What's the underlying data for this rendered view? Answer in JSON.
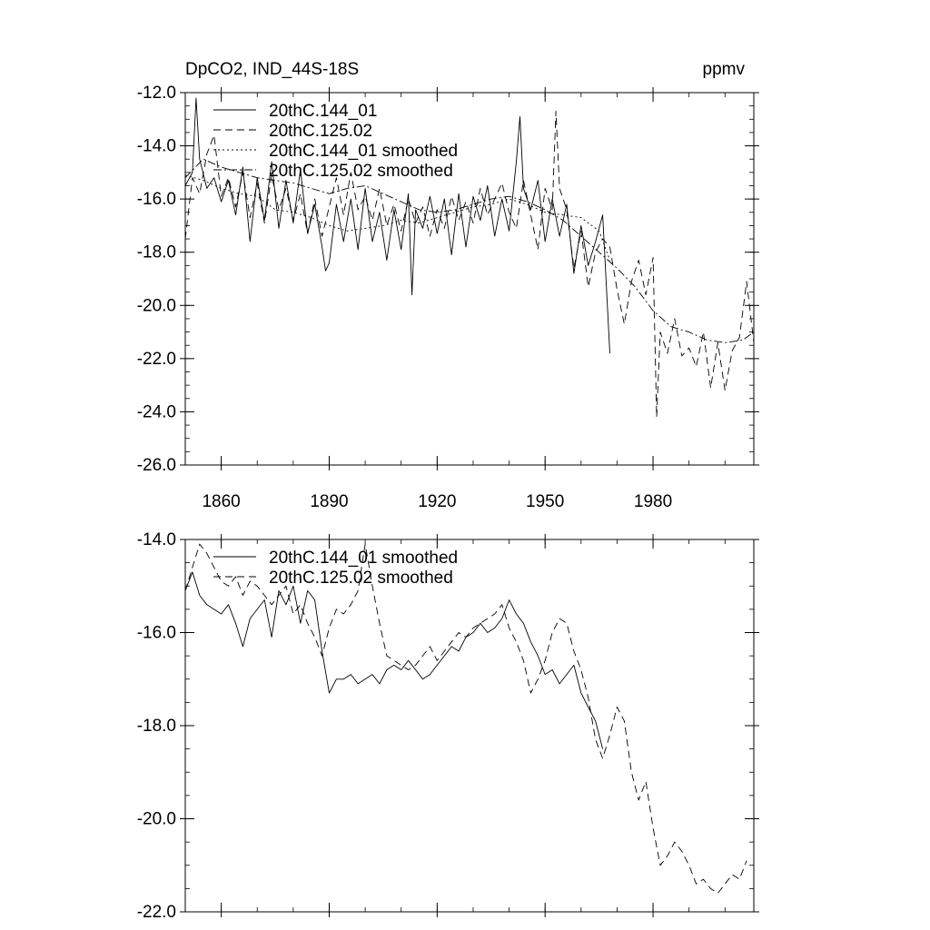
{
  "figure": {
    "title_left": "DpCO2, IND_44S-18S",
    "title_right": "ppmv"
  },
  "chart_data": [
    {
      "type": "line",
      "title": "DpCO2, IND_44S-18S",
      "units": "ppmv",
      "xlim": [
        1850,
        2008
      ],
      "ylim": [
        -26.0,
        -12.0
      ],
      "xticks": [
        1860,
        1890,
        1920,
        1950,
        1980
      ],
      "xtick_labels": [
        "1860",
        "1890",
        "1920",
        "1950",
        "1980"
      ],
      "yticks": [
        -12.0,
        -14.0,
        -16.0,
        -18.0,
        -20.0,
        -22.0,
        -24.0,
        -26.0
      ],
      "ytick_labels": [
        "-12.0",
        "-14.0",
        "-16.0",
        "-18.0",
        "-20.0",
        "-22.0",
        "-24.0",
        "-26.0"
      ],
      "legend_position": "top-left",
      "series": [
        {
          "name": "20thC.144_01",
          "style": "solid",
          "x": [
            1850,
            1852,
            1853,
            1854,
            1856,
            1858,
            1860,
            1862,
            1864,
            1866,
            1868,
            1870,
            1872,
            1874,
            1876,
            1878,
            1880,
            1882,
            1884,
            1886,
            1888,
            1889,
            1890,
            1892,
            1894,
            1896,
            1898,
            1900,
            1902,
            1904,
            1906,
            1908,
            1910,
            1912,
            1913,
            1914,
            1916,
            1918,
            1920,
            1922,
            1924,
            1926,
            1928,
            1930,
            1932,
            1934,
            1936,
            1938,
            1940,
            1942,
            1943,
            1944,
            1946,
            1948,
            1950,
            1952,
            1954,
            1956,
            1958,
            1960,
            1962,
            1964,
            1966,
            1968
          ],
          "values": [
            -15.5,
            -15.0,
            -12.2,
            -14.5,
            -15.6,
            -15.2,
            -16.1,
            -15.3,
            -16.6,
            -14.8,
            -17.6,
            -15.2,
            -16.8,
            -14.6,
            -17.1,
            -15.3,
            -16.9,
            -14.9,
            -17.3,
            -16.2,
            -17.8,
            -18.7,
            -18.4,
            -16.2,
            -17.6,
            -16.0,
            -17.9,
            -15.6,
            -17.6,
            -16.5,
            -18.3,
            -16.4,
            -17.9,
            -15.8,
            -19.6,
            -16.4,
            -17.1,
            -15.9,
            -17.3,
            -16.0,
            -18.1,
            -15.8,
            -17.8,
            -15.9,
            -16.8,
            -15.5,
            -17.4,
            -16.0,
            -17.2,
            -14.6,
            -12.9,
            -15.6,
            -16.4,
            -15.3,
            -17.6,
            -16.0,
            -17.4,
            -16.2,
            -18.8,
            -17.0,
            -18.5,
            -17.6,
            -16.6,
            -21.8
          ]
        },
        {
          "name": "20thC.125.02",
          "style": "dashed",
          "x": [
            1850,
            1852,
            1854,
            1856,
            1858,
            1860,
            1862,
            1864,
            1866,
            1868,
            1870,
            1872,
            1874,
            1876,
            1878,
            1880,
            1882,
            1884,
            1886,
            1888,
            1890,
            1892,
            1894,
            1896,
            1898,
            1900,
            1902,
            1904,
            1906,
            1908,
            1910,
            1912,
            1914,
            1916,
            1918,
            1920,
            1922,
            1924,
            1926,
            1928,
            1930,
            1932,
            1934,
            1936,
            1938,
            1940,
            1942,
            1944,
            1946,
            1948,
            1950,
            1952,
            1953,
            1954,
            1956,
            1958,
            1960,
            1962,
            1964,
            1966,
            1968,
            1970,
            1972,
            1974,
            1976,
            1978,
            1980,
            1981,
            1982,
            1984,
            1986,
            1988,
            1990,
            1992,
            1994,
            1996,
            1998,
            2000,
            2002,
            2004,
            2006,
            2008
          ],
          "values": [
            -17.5,
            -15.2,
            -15.8,
            -14.3,
            -13.6,
            -15.9,
            -15.2,
            -16.3,
            -15.0,
            -16.7,
            -15.4,
            -16.9,
            -15.1,
            -16.4,
            -15.6,
            -16.8,
            -15.8,
            -17.3,
            -16.0,
            -17.4,
            -16.3,
            -15.2,
            -16.6,
            -15.0,
            -16.4,
            -15.9,
            -16.8,
            -15.6,
            -17.0,
            -16.2,
            -17.2,
            -16.0,
            -16.9,
            -16.3,
            -17.4,
            -16.4,
            -17.1,
            -15.9,
            -16.8,
            -16.1,
            -16.9,
            -15.6,
            -16.6,
            -16.0,
            -15.4,
            -16.5,
            -17.1,
            -15.3,
            -16.6,
            -17.9,
            -15.6,
            -16.4,
            -12.7,
            -15.6,
            -16.4,
            -18.6,
            -17.2,
            -19.3,
            -18.0,
            -17.5,
            -17.8,
            -19.4,
            -20.7,
            -19.1,
            -18.3,
            -19.6,
            -18.2,
            -24.2,
            -21.0,
            -21.8,
            -20.5,
            -21.9,
            -21.6,
            -22.3,
            -21.0,
            -23.1,
            -21.4,
            -23.2,
            -21.7,
            -21.2,
            -19.1,
            -21.4
          ]
        },
        {
          "name": "20thC.144_01 smoothed",
          "style": "dotted",
          "x": [
            1850,
            1855,
            1860,
            1865,
            1870,
            1875,
            1880,
            1885,
            1890,
            1895,
            1900,
            1905,
            1910,
            1915,
            1920,
            1925,
            1930,
            1935,
            1940,
            1945,
            1950,
            1955,
            1960,
            1965,
            1968
          ],
          "values": [
            -15.1,
            -15.3,
            -15.6,
            -15.8,
            -15.9,
            -16.4,
            -16.5,
            -16.7,
            -17.0,
            -17.2,
            -17.1,
            -17.0,
            -16.8,
            -16.9,
            -16.7,
            -16.5,
            -16.3,
            -16.2,
            -16.0,
            -16.2,
            -16.5,
            -16.6,
            -16.7,
            -17.2,
            -18.3
          ]
        },
        {
          "name": "20thC.125.02 smoothed",
          "style": "dashdot",
          "x": [
            1850,
            1855,
            1860,
            1865,
            1870,
            1875,
            1880,
            1885,
            1890,
            1895,
            1900,
            1905,
            1910,
            1915,
            1920,
            1925,
            1930,
            1935,
            1940,
            1945,
            1950,
            1955,
            1960,
            1965,
            1970,
            1975,
            1980,
            1985,
            1990,
            1995,
            2000,
            2005,
            2008
          ],
          "values": [
            -15.2,
            -14.5,
            -14.8,
            -15.0,
            -15.2,
            -15.3,
            -15.4,
            -15.6,
            -15.8,
            -15.6,
            -15.5,
            -15.8,
            -16.1,
            -16.4,
            -16.5,
            -16.4,
            -16.2,
            -16.0,
            -15.9,
            -16.1,
            -16.4,
            -16.8,
            -17.4,
            -18.0,
            -18.6,
            -19.3,
            -20.2,
            -20.8,
            -21.0,
            -21.3,
            -21.4,
            -21.3,
            -21.0
          ]
        }
      ]
    },
    {
      "type": "line",
      "xlim": [
        1850,
        2008
      ],
      "ylim": [
        -22.0,
        -14.0
      ],
      "xticks": [
        1860,
        1890,
        1920,
        1950,
        1980
      ],
      "yticks": [
        -14.0,
        -16.0,
        -18.0,
        -20.0,
        -22.0
      ],
      "ytick_labels": [
        "-14.0",
        "-16.0",
        "-18.0",
        "-20.0",
        "-22.0"
      ],
      "legend_position": "top-left",
      "series": [
        {
          "name": "20thC.144_01 smoothed",
          "style": "solid",
          "x": [
            1850,
            1852,
            1854,
            1856,
            1858,
            1860,
            1862,
            1864,
            1866,
            1868,
            1870,
            1872,
            1874,
            1876,
            1878,
            1880,
            1882,
            1884,
            1886,
            1888,
            1890,
            1892,
            1894,
            1896,
            1898,
            1900,
            1902,
            1904,
            1906,
            1908,
            1910,
            1912,
            1914,
            1916,
            1918,
            1920,
            1922,
            1924,
            1926,
            1928,
            1930,
            1932,
            1934,
            1936,
            1938,
            1940,
            1942,
            1944,
            1946,
            1948,
            1950,
            1952,
            1954,
            1956,
            1958,
            1960,
            1962,
            1964,
            1966
          ],
          "values": [
            -15.1,
            -14.7,
            -15.2,
            -15.4,
            -15.5,
            -15.6,
            -15.4,
            -15.8,
            -16.3,
            -15.7,
            -15.5,
            -15.3,
            -16.1,
            -15.1,
            -15.4,
            -15.0,
            -15.8,
            -15.1,
            -15.3,
            -16.4,
            -17.3,
            -17.0,
            -17.0,
            -16.9,
            -17.1,
            -17.0,
            -16.9,
            -17.1,
            -16.8,
            -16.7,
            -16.8,
            -16.6,
            -16.8,
            -17.0,
            -16.9,
            -16.7,
            -16.5,
            -16.3,
            -16.4,
            -16.1,
            -16.0,
            -15.8,
            -16.0,
            -15.9,
            -15.7,
            -15.3,
            -15.6,
            -15.8,
            -16.2,
            -16.5,
            -16.9,
            -16.8,
            -17.1,
            -16.9,
            -16.7,
            -17.3,
            -17.6,
            -17.9,
            -18.5
          ]
        },
        {
          "name": "20thC.125.02 smoothed",
          "style": "dashed",
          "x": [
            1850,
            1852,
            1854,
            1856,
            1858,
            1860,
            1862,
            1864,
            1866,
            1868,
            1870,
            1872,
            1874,
            1876,
            1878,
            1880,
            1882,
            1884,
            1886,
            1888,
            1890,
            1892,
            1894,
            1896,
            1898,
            1900,
            1902,
            1904,
            1906,
            1908,
            1910,
            1912,
            1914,
            1916,
            1918,
            1920,
            1922,
            1924,
            1926,
            1928,
            1930,
            1932,
            1934,
            1936,
            1938,
            1940,
            1942,
            1944,
            1946,
            1948,
            1950,
            1952,
            1954,
            1956,
            1958,
            1960,
            1962,
            1964,
            1966,
            1968,
            1970,
            1972,
            1974,
            1976,
            1978,
            1980,
            1982,
            1984,
            1986,
            1988,
            1990,
            1992,
            1994,
            1996,
            1998,
            2000,
            2002,
            2004,
            2006
          ],
          "values": [
            -15.1,
            -14.6,
            -14.1,
            -14.3,
            -14.6,
            -14.9,
            -15.0,
            -14.8,
            -15.2,
            -14.9,
            -15.0,
            -15.2,
            -15.4,
            -15.2,
            -15.0,
            -15.6,
            -15.4,
            -15.8,
            -16.1,
            -16.5,
            -15.9,
            -15.5,
            -15.6,
            -15.4,
            -15.1,
            -14.1,
            -15.0,
            -15.8,
            -16.5,
            -16.6,
            -16.7,
            -16.8,
            -16.7,
            -16.5,
            -16.3,
            -16.6,
            -16.4,
            -16.2,
            -16.0,
            -16.1,
            -15.9,
            -15.8,
            -15.7,
            -15.6,
            -15.4,
            -15.9,
            -16.2,
            -16.6,
            -17.3,
            -17.0,
            -16.6,
            -16.0,
            -15.7,
            -15.8,
            -16.4,
            -16.8,
            -17.4,
            -18.3,
            -18.7,
            -18.2,
            -17.6,
            -17.9,
            -19.0,
            -19.6,
            -19.2,
            -20.2,
            -21.0,
            -20.8,
            -20.5,
            -20.7,
            -21.0,
            -21.4,
            -21.3,
            -21.5,
            -21.6,
            -21.4,
            -21.2,
            -21.3,
            -20.9
          ]
        }
      ]
    }
  ]
}
